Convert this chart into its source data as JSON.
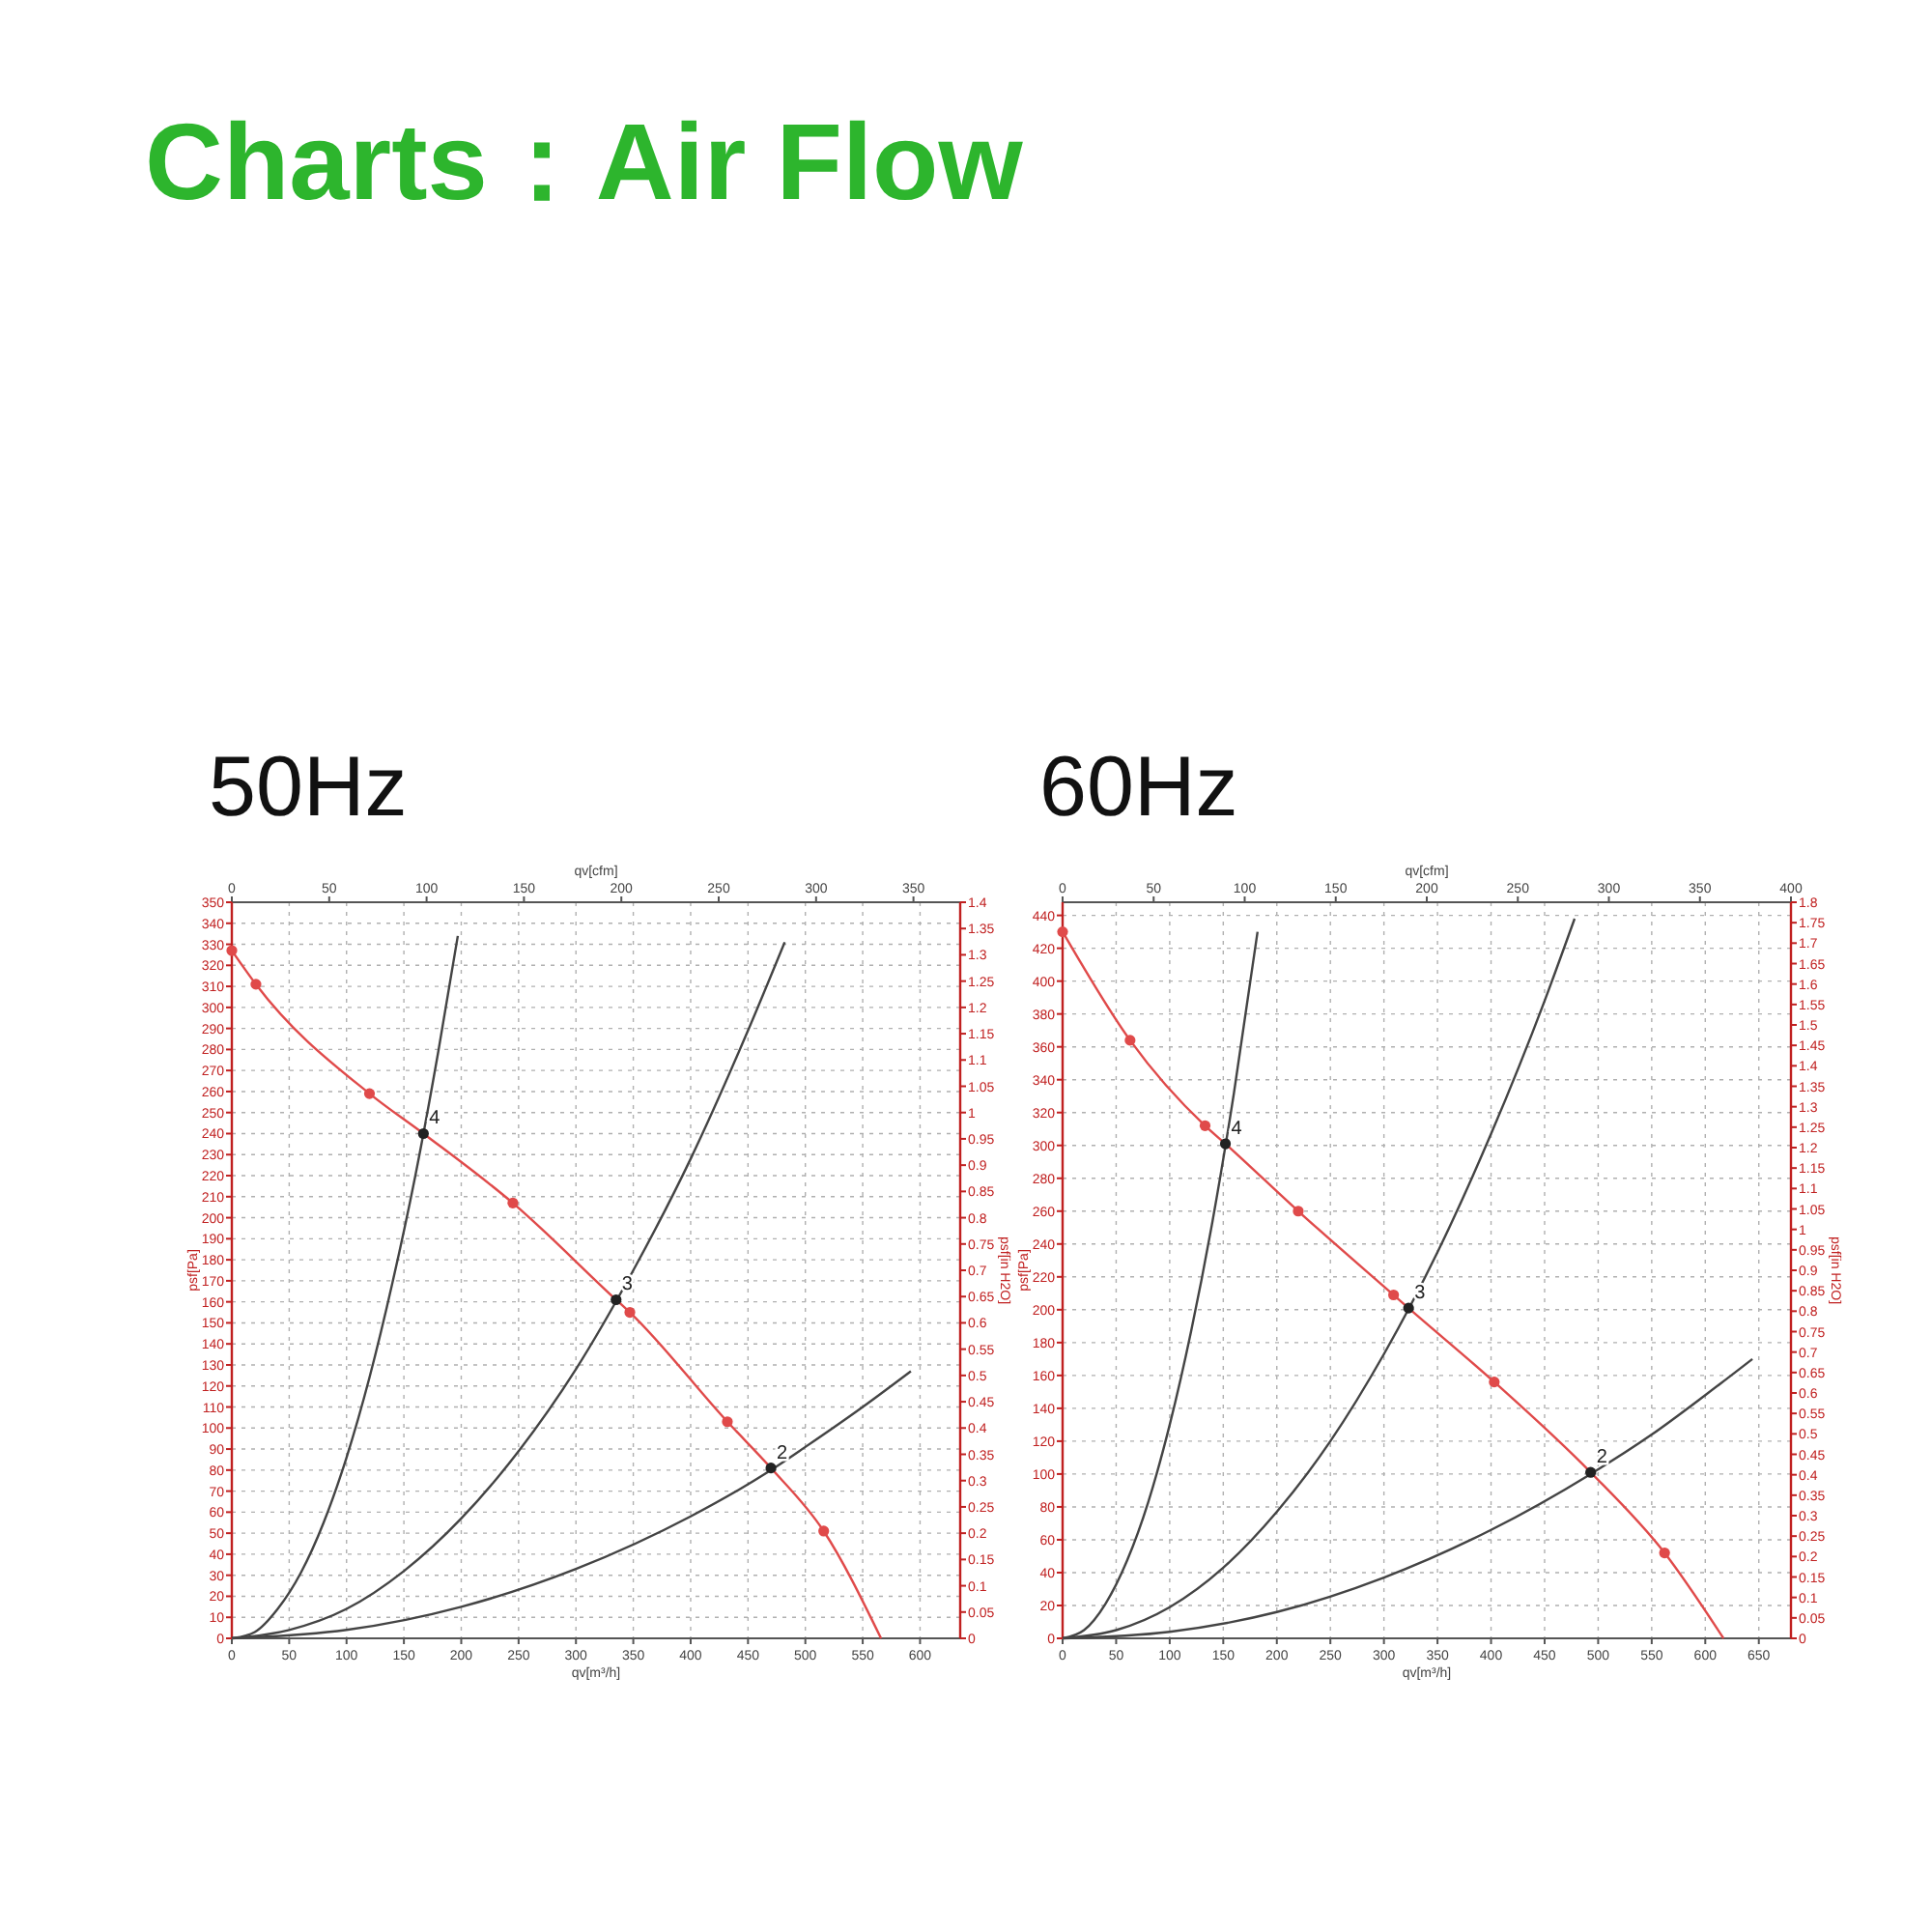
{
  "chart_data": [
    {
      "type": "line",
      "title": "Charts：Air Flow",
      "subtitle": "50Hz",
      "xlabel": "qv[m³/h]",
      "x2label": "qv[cfm]",
      "ylabel": "psf[Pa]",
      "y2label": "psf[in H2O]",
      "xlim": [
        0,
        635
      ],
      "xticks": [
        0,
        50,
        100,
        150,
        200,
        250,
        300,
        350,
        400,
        450,
        500,
        550,
        600
      ],
      "x2lim": [
        0,
        374
      ],
      "x2ticks": [
        0,
        50,
        100,
        150,
        200,
        250,
        300,
        350
      ],
      "ylim": [
        0,
        350
      ],
      "yticks": [
        0,
        10,
        20,
        30,
        40,
        50,
        60,
        70,
        80,
        90,
        100,
        110,
        120,
        130,
        140,
        150,
        160,
        170,
        180,
        190,
        200,
        210,
        220,
        230,
        240,
        250,
        260,
        270,
        280,
        290,
        300,
        310,
        320,
        330,
        340,
        350
      ],
      "y2lim": [
        0,
        1.4
      ],
      "y2ticks": [
        0,
        0.05,
        0.1,
        0.15,
        0.2,
        0.25,
        0.3,
        0.35,
        0.4,
        0.45,
        0.5,
        0.55,
        0.6,
        0.65,
        0.7,
        0.75,
        0.8,
        0.85,
        0.9,
        0.95,
        1,
        1.05,
        1.1,
        1.15,
        1.2,
        1.25,
        1.3,
        1.35,
        1.4
      ],
      "grid": true,
      "series": [
        {
          "type": "line",
          "color": "#e04a4a",
          "x": [
            0,
            21,
            120,
            167,
            245,
            335,
            347,
            432,
            470,
            516,
            566
          ],
          "values": [
            327,
            311,
            259,
            240,
            207,
            161,
            155,
            103,
            81,
            51,
            0
          ]
        },
        {
          "type": "scatter",
          "marker": "circle",
          "color": "#e04a4a",
          "x": [
            0,
            21,
            120,
            245,
            347,
            432,
            516
          ],
          "values": [
            327,
            311,
            259,
            207,
            155,
            103,
            51
          ]
        },
        {
          "type": "line",
          "color": "#444444",
          "x": [
            0,
            20,
            40,
            60,
            80,
            100,
            120,
            140,
            160,
            180,
            197
          ],
          "values": [
            0,
            3,
            14,
            31,
            55,
            86,
            124,
            169,
            220,
            279,
            334
          ]
        },
        {
          "type": "line",
          "color": "#444444",
          "x": [
            0,
            50,
            100,
            150,
            200,
            250,
            300,
            350,
            400,
            450,
            482
          ],
          "values": [
            0,
            4,
            14,
            32,
            57,
            89,
            128,
            175,
            228,
            289,
            331
          ]
        },
        {
          "type": "line",
          "color": "#444444",
          "x": [
            0,
            100,
            200,
            300,
            400,
            470,
            500,
            550,
            592
          ],
          "values": [
            0,
            4,
            15,
            33,
            58,
            80,
            91,
            110,
            127
          ]
        },
        {
          "type": "scatter",
          "marker": "circle",
          "color": "#222222",
          "x": [
            167,
            335,
            470
          ],
          "values": [
            240,
            161,
            81
          ]
        }
      ],
      "annotations": [
        {
          "text": "4",
          "x": 167,
          "y": 240
        },
        {
          "text": "3",
          "x": 335,
          "y": 161
        },
        {
          "text": "2",
          "x": 470,
          "y": 81
        }
      ]
    },
    {
      "type": "line",
      "subtitle": "60Hz",
      "xlabel": "qv[m³/h]",
      "x2label": "qv[cfm]",
      "ylabel": "psf[Pa]",
      "y2label": "psf[in H2O]",
      "xlim": [
        0,
        680
      ],
      "xticks": [
        0,
        50,
        100,
        150,
        200,
        250,
        300,
        350,
        400,
        450,
        500,
        550,
        600,
        650
      ],
      "x2lim": [
        0,
        400
      ],
      "x2ticks": [
        0,
        50,
        100,
        150,
        200,
        250,
        300,
        350,
        400
      ],
      "ylim": [
        0,
        448
      ],
      "yticks": [
        0,
        20,
        40,
        60,
        80,
        100,
        120,
        140,
        160,
        180,
        200,
        220,
        240,
        260,
        280,
        300,
        320,
        340,
        360,
        380,
        400,
        420,
        440
      ],
      "y2lim": [
        0,
        1.8
      ],
      "y2ticks": [
        0,
        0.05,
        0.1,
        0.15,
        0.2,
        0.25,
        0.3,
        0.35,
        0.4,
        0.45,
        0.5,
        0.55,
        0.6,
        0.65,
        0.7,
        0.75,
        0.8,
        0.85,
        0.9,
        0.95,
        1,
        1.05,
        1.1,
        1.15,
        1.2,
        1.25,
        1.3,
        1.35,
        1.4,
        1.45,
        1.5,
        1.55,
        1.6,
        1.65,
        1.7,
        1.75,
        1.8
      ],
      "grid": true,
      "series": [
        {
          "type": "line",
          "color": "#e04a4a",
          "x": [
            0,
            63,
            133,
            152,
            220,
            309,
            323,
            403,
            493,
            562,
            617
          ],
          "values": [
            430,
            364,
            312,
            301,
            260,
            209,
            201,
            156,
            101,
            52,
            0
          ]
        },
        {
          "type": "scatter",
          "marker": "circle",
          "color": "#e04a4a",
          "x": [
            0,
            63,
            133,
            220,
            309,
            403,
            562
          ],
          "values": [
            430,
            364,
            312,
            260,
            209,
            156,
            52
          ]
        },
        {
          "type": "line",
          "color": "#444444",
          "x": [
            0,
            20,
            40,
            60,
            80,
            100,
            120,
            140,
            160,
            182
          ],
          "values": [
            0,
            5,
            21,
            47,
            83,
            130,
            187,
            254,
            332,
            430
          ]
        },
        {
          "type": "line",
          "color": "#444444",
          "x": [
            0,
            50,
            100,
            150,
            200,
            250,
            300,
            350,
            400,
            450,
            478
          ],
          "values": [
            0,
            5,
            19,
            43,
            77,
            120,
            173,
            235,
            307,
            388,
            438
          ]
        },
        {
          "type": "line",
          "color": "#444444",
          "x": [
            0,
            100,
            200,
            300,
            400,
            493,
            550,
            600,
            644
          ],
          "values": [
            0,
            4,
            16,
            37,
            66,
            100,
            124,
            148,
            170
          ]
        },
        {
          "type": "scatter",
          "marker": "circle",
          "color": "#222222",
          "x": [
            152,
            323,
            493
          ],
          "values": [
            301,
            201,
            101
          ]
        }
      ],
      "annotations": [
        {
          "text": "4",
          "x": 152,
          "y": 301
        },
        {
          "text": "3",
          "x": 323,
          "y": 201
        },
        {
          "text": "2",
          "x": 493,
          "y": 101
        }
      ]
    }
  ]
}
